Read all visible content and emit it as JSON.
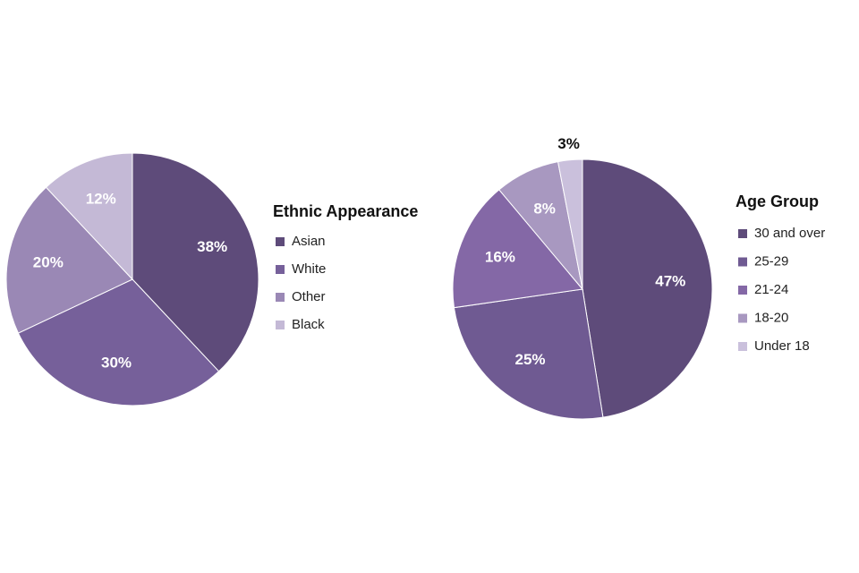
{
  "chart_data": [
    {
      "type": "pie",
      "legend_title": "Ethnic Appearance",
      "categories": [
        "Asian",
        "White",
        "Other",
        "Black"
      ],
      "values": [
        38,
        30,
        20,
        12
      ],
      "value_labels": [
        "38%",
        "30%",
        "20%",
        "12%"
      ],
      "colors": [
        "#5e4b7a",
        "#76609a",
        "#9a88b5",
        "#c4b9d6"
      ],
      "legend": "right"
    },
    {
      "type": "pie",
      "legend_title": "Age Group",
      "categories": [
        "30 and over",
        "25-29",
        "21-24",
        "18-20",
        "Under 18"
      ],
      "values": [
        47,
        25,
        16,
        8,
        3
      ],
      "value_labels": [
        "47%",
        "25%",
        "16%",
        "8%",
        "3%"
      ],
      "colors": [
        "#5e4b7a",
        "#6f5a92",
        "#8468a6",
        "#a898c0",
        "#cac0dc"
      ],
      "legend": "right"
    }
  ]
}
